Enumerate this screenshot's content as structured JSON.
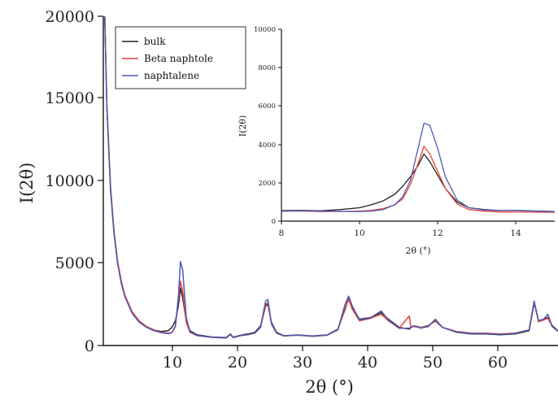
{
  "colors": {
    "bulk": "#222222",
    "beta_naphtole": "#e8413c",
    "naphtalene": "#4f5bb5",
    "axis": "#111111"
  },
  "chart_data": [
    {
      "type": "line",
      "xlabel": "2θ (°)",
      "ylabel": "I(2θ)",
      "xlim": [
        1,
        64
      ],
      "ylim": [
        0,
        20000
      ],
      "x_ticks": [
        10,
        20,
        30,
        40,
        50,
        60
      ],
      "y_ticks": [
        0,
        5000,
        10000,
        15000,
        20000
      ],
      "grid": false,
      "legend_position": "top-left",
      "series": [
        {
          "name": "bulk",
          "color_key": "bulk",
          "points": [
            [
              1.2,
              20000
            ],
            [
              1.5,
              14500
            ],
            [
              2,
              9500
            ],
            [
              2.5,
              6800
            ],
            [
              3,
              5000
            ],
            [
              3.5,
              3800
            ],
            [
              4,
              3000
            ],
            [
              5,
              2000
            ],
            [
              6,
              1450
            ],
            [
              7,
              1150
            ],
            [
              8,
              950
            ],
            [
              9,
              850
            ],
            [
              10,
              900
            ],
            [
              10.5,
              1100
            ],
            [
              11,
              1500
            ],
            [
              11.4,
              2400
            ],
            [
              11.7,
              3500
            ],
            [
              12,
              2900
            ],
            [
              12.5,
              1500
            ],
            [
              13,
              900
            ],
            [
              14,
              650
            ],
            [
              16,
              520
            ],
            [
              18,
              480
            ],
            [
              18.6,
              700
            ],
            [
              19,
              500
            ],
            [
              20,
              620
            ],
            [
              21,
              700
            ],
            [
              22,
              800
            ],
            [
              22.8,
              1200
            ],
            [
              23.5,
              2400
            ],
            [
              23.8,
              2500
            ],
            [
              24.3,
              1400
            ],
            [
              25,
              800
            ],
            [
              26,
              600
            ],
            [
              28,
              640
            ],
            [
              30,
              580
            ],
            [
              32,
              640
            ],
            [
              33.5,
              1000
            ],
            [
              34.5,
              2200
            ],
            [
              35,
              2900
            ],
            [
              35.5,
              2300
            ],
            [
              36.5,
              1600
            ],
            [
              38,
              1700
            ],
            [
              39.5,
              2000
            ],
            [
              40.5,
              1600
            ],
            [
              42,
              1100
            ],
            [
              43.4,
              1000
            ],
            [
              44,
              1200
            ],
            [
              45,
              1100
            ],
            [
              46,
              1200
            ],
            [
              47,
              1500
            ],
            [
              48,
              1100
            ],
            [
              50,
              800
            ],
            [
              52,
              700
            ],
            [
              54,
              700
            ],
            [
              56,
              650
            ],
            [
              58,
              700
            ],
            [
              60,
              900
            ],
            [
              60.7,
              2600
            ],
            [
              61.3,
              1500
            ],
            [
              62,
              1600
            ],
            [
              62.6,
              1700
            ],
            [
              63.2,
              1200
            ],
            [
              64,
              900
            ]
          ]
        },
        {
          "name": "Beta naphtole",
          "color_key": "beta_naphtole",
          "points": [
            [
              1.2,
              20000
            ],
            [
              1.5,
              14700
            ],
            [
              2,
              9700
            ],
            [
              2.5,
              6900
            ],
            [
              3,
              5100
            ],
            [
              3.5,
              3900
            ],
            [
              4,
              3050
            ],
            [
              5,
              2050
            ],
            [
              6,
              1480
            ],
            [
              7,
              1150
            ],
            [
              8,
              950
            ],
            [
              9,
              800
            ],
            [
              10,
              750
            ],
            [
              10.5,
              800
            ],
            [
              11,
              1200
            ],
            [
              11.4,
              2800
            ],
            [
              11.7,
              3900
            ],
            [
              12,
              3300
            ],
            [
              12.5,
              1400
            ],
            [
              13,
              800
            ],
            [
              14,
              600
            ],
            [
              16,
              500
            ],
            [
              18,
              450
            ],
            [
              18.6,
              650
            ],
            [
              19,
              480
            ],
            [
              20,
              600
            ],
            [
              21,
              650
            ],
            [
              22,
              750
            ],
            [
              22.8,
              1100
            ],
            [
              23.5,
              2500
            ],
            [
              23.8,
              2600
            ],
            [
              24.3,
              1300
            ],
            [
              25,
              750
            ],
            [
              26,
              580
            ],
            [
              28,
              620
            ],
            [
              30,
              560
            ],
            [
              32,
              620
            ],
            [
              33.5,
              950
            ],
            [
              34.5,
              2300
            ],
            [
              35,
              2800
            ],
            [
              35.5,
              2200
            ],
            [
              36.5,
              1500
            ],
            [
              38,
              1650
            ],
            [
              39.5,
              1900
            ],
            [
              40.5,
              1500
            ],
            [
              42,
              1050
            ],
            [
              43.4,
              1800
            ],
            [
              43.6,
              1100
            ],
            [
              44,
              1150
            ],
            [
              45,
              1100
            ],
            [
              46,
              1150
            ],
            [
              47,
              1550
            ],
            [
              48,
              1100
            ],
            [
              50,
              850
            ],
            [
              52,
              750
            ],
            [
              54,
              750
            ],
            [
              56,
              700
            ],
            [
              58,
              750
            ],
            [
              60,
              950
            ],
            [
              60.7,
              2700
            ],
            [
              61.3,
              1450
            ],
            [
              62,
              1550
            ],
            [
              62.6,
              1650
            ],
            [
              63.2,
              1150
            ],
            [
              64,
              900
            ]
          ]
        },
        {
          "name": "naphtalene",
          "color_key": "naphtalene",
          "points": [
            [
              1.2,
              20000
            ],
            [
              1.5,
              14400
            ],
            [
              2,
              9400
            ],
            [
              2.5,
              6700
            ],
            [
              3,
              4950
            ],
            [
              3.5,
              3750
            ],
            [
              4,
              2950
            ],
            [
              5,
              1950
            ],
            [
              6,
              1400
            ],
            [
              7,
              1100
            ],
            [
              8,
              900
            ],
            [
              9,
              780
            ],
            [
              10,
              720
            ],
            [
              10.5,
              780
            ],
            [
              11,
              1150
            ],
            [
              11.4,
              3000
            ],
            [
              11.7,
              5100
            ],
            [
              12,
              4600
            ],
            [
              12.5,
              1700
            ],
            [
              13,
              850
            ],
            [
              14,
              620
            ],
            [
              16,
              500
            ],
            [
              18,
              460
            ],
            [
              18.6,
              680
            ],
            [
              19,
              490
            ],
            [
              20,
              610
            ],
            [
              21,
              660
            ],
            [
              22,
              760
            ],
            [
              22.8,
              1150
            ],
            [
              23.5,
              2700
            ],
            [
              23.8,
              2800
            ],
            [
              24.3,
              1350
            ],
            [
              25,
              760
            ],
            [
              26,
              590
            ],
            [
              28,
              630
            ],
            [
              30,
              570
            ],
            [
              32,
              630
            ],
            [
              33.5,
              980
            ],
            [
              34.5,
              2500
            ],
            [
              35,
              3000
            ],
            [
              35.5,
              2400
            ],
            [
              36.5,
              1550
            ],
            [
              38,
              1680
            ],
            [
              39.5,
              2100
            ],
            [
              40.5,
              1550
            ],
            [
              42,
              1050
            ],
            [
              43.4,
              1050
            ],
            [
              44,
              1200
            ],
            [
              45,
              1050
            ],
            [
              46,
              1150
            ],
            [
              47,
              1600
            ],
            [
              48,
              1100
            ],
            [
              50,
              820
            ],
            [
              52,
              720
            ],
            [
              54,
              720
            ],
            [
              56,
              680
            ],
            [
              58,
              720
            ],
            [
              60,
              950
            ],
            [
              60.7,
              2700
            ],
            [
              61.3,
              1500
            ],
            [
              62,
              1600
            ],
            [
              62.6,
              1900
            ],
            [
              63.2,
              1150
            ],
            [
              64,
              850
            ]
          ]
        }
      ]
    },
    {
      "type": "line",
      "xlabel": "2θ (°)",
      "ylabel": "I(2θ)",
      "xlim": [
        8,
        15
      ],
      "ylim": [
        0,
        10000
      ],
      "x_ticks": [
        8,
        10,
        12,
        14
      ],
      "y_ticks": [
        0,
        2000,
        4000,
        6000,
        8000,
        10000
      ],
      "grid": false,
      "series": [
        {
          "name": "bulk",
          "color_key": "bulk",
          "points": [
            [
              8,
              550
            ],
            [
              8.5,
              560
            ],
            [
              9,
              540
            ],
            [
              9.5,
              600
            ],
            [
              10,
              700
            ],
            [
              10.3,
              850
            ],
            [
              10.6,
              1050
            ],
            [
              10.9,
              1400
            ],
            [
              11.1,
              1800
            ],
            [
              11.3,
              2300
            ],
            [
              11.5,
              2900
            ],
            [
              11.65,
              3500
            ],
            [
              11.8,
              3100
            ],
            [
              12,
              2400
            ],
            [
              12.2,
              1700
            ],
            [
              12.5,
              1000
            ],
            [
              12.8,
              700
            ],
            [
              13.2,
              600
            ],
            [
              13.6,
              550
            ],
            [
              14,
              560
            ],
            [
              14.5,
              530
            ],
            [
              15,
              500
            ]
          ]
        },
        {
          "name": "Beta naphtole",
          "color_key": "beta_naphtole",
          "points": [
            [
              8,
              520
            ],
            [
              8.5,
              530
            ],
            [
              9,
              500
            ],
            [
              9.5,
              500
            ],
            [
              10,
              520
            ],
            [
              10.3,
              560
            ],
            [
              10.6,
              650
            ],
            [
              10.9,
              850
            ],
            [
              11.1,
              1150
            ],
            [
              11.3,
              1900
            ],
            [
              11.5,
              3000
            ],
            [
              11.65,
              3900
            ],
            [
              11.8,
              3500
            ],
            [
              12,
              2600
            ],
            [
              12.2,
              1700
            ],
            [
              12.5,
              900
            ],
            [
              12.8,
              600
            ],
            [
              13.2,
              520
            ],
            [
              13.6,
              480
            ],
            [
              14,
              470
            ],
            [
              14.5,
              470
            ],
            [
              15,
              460
            ]
          ]
        },
        {
          "name": "naphtalene",
          "color_key": "naphtalene",
          "points": [
            [
              8,
              520
            ],
            [
              8.5,
              540
            ],
            [
              9,
              520
            ],
            [
              9.5,
              510
            ],
            [
              10,
              500
            ],
            [
              10.3,
              520
            ],
            [
              10.6,
              600
            ],
            [
              10.9,
              850
            ],
            [
              11.1,
              1250
            ],
            [
              11.3,
              2100
            ],
            [
              11.5,
              3800
            ],
            [
              11.65,
              5100
            ],
            [
              11.8,
              5000
            ],
            [
              12,
              3800
            ],
            [
              12.2,
              2300
            ],
            [
              12.5,
              1100
            ],
            [
              12.8,
              700
            ],
            [
              13.2,
              580
            ],
            [
              13.6,
              560
            ],
            [
              14,
              550
            ],
            [
              14.5,
              520
            ],
            [
              15,
              500
            ]
          ]
        }
      ]
    }
  ],
  "legend": {
    "entries": [
      "bulk",
      "Beta naphtole",
      "naphtalene"
    ]
  },
  "main": {
    "y_tick_labels": [
      "0",
      "5000",
      "10000",
      "15000",
      "20000"
    ],
    "x_tick_labels": [
      "10",
      "20",
      "30",
      "40",
      "50",
      "60"
    ],
    "xlabel": "2θ (°)",
    "ylabel": "I(2θ)"
  },
  "inset": {
    "y_tick_labels": [
      "0",
      "2000",
      "4000",
      "6000",
      "8000",
      "10000"
    ],
    "x_tick_labels": [
      "8",
      "10",
      "12",
      "14"
    ],
    "xlabel": "2θ (°)",
    "ylabel": "I(2θ)"
  }
}
